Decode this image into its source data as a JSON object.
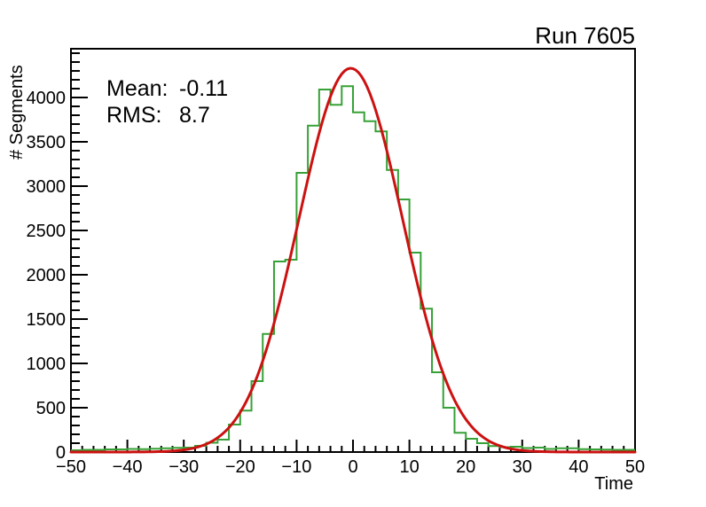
{
  "header": {
    "title": "Run 7605"
  },
  "stats_box": {
    "mean_label": "Mean:",
    "mean_value": "-0.11",
    "rms_label": "RMS:",
    "rms_value": "8.7"
  },
  "axis_titles": {
    "x": "Time",
    "y": "# Segments"
  },
  "chart_data": {
    "type": "bar",
    "subtype": "step-histogram-with-gaussian-fit",
    "title": "Run 7605",
    "xlabel": "Time",
    "ylabel": "# Segments",
    "xlim": [
      -50,
      50
    ],
    "ylim": [
      0,
      4550
    ],
    "grid": false,
    "legend": "none",
    "bins": {
      "start": -50,
      "width": 2,
      "counts": [
        20,
        25,
        25,
        30,
        30,
        35,
        33,
        38,
        42,
        48,
        50,
        70,
        105,
        140,
        310,
        467,
        800,
        1333,
        2150,
        2170,
        3150,
        3683,
        4090,
        3917,
        4127,
        3833,
        3733,
        3617,
        3183,
        2850,
        2250,
        1617,
        900,
        500,
        217,
        150,
        100,
        67,
        55,
        60,
        45,
        50,
        35,
        42,
        42,
        33,
        30,
        28,
        25,
        25
      ]
    },
    "x_ticks": {
      "values": [
        -50,
        -40,
        -30,
        -20,
        -10,
        0,
        10,
        20,
        30,
        40,
        50
      ],
      "labels": [
        "−50",
        "−40",
        "−30",
        "−20",
        "−10",
        "0",
        "10",
        "20",
        "30",
        "40",
        "50"
      ],
      "minor_step": 2
    },
    "y_ticks": {
      "values": [
        0,
        500,
        1000,
        1500,
        2000,
        2500,
        3000,
        3500,
        4000
      ],
      "labels": [
        "0",
        "500",
        "1000",
        "1500",
        "2000",
        "2500",
        "3000",
        "3500",
        "4000"
      ],
      "minor_step": 100
    },
    "fit": {
      "shape": "gaussian",
      "amplitude": 4330,
      "mean": -0.4,
      "sigma": 9.2
    },
    "colors": {
      "histogram": "#36a136",
      "fit": "#cc1111",
      "axis": "#000000",
      "background": "#ffffff"
    },
    "stats": {
      "mean": "-0.11",
      "rms": "8.7"
    }
  }
}
